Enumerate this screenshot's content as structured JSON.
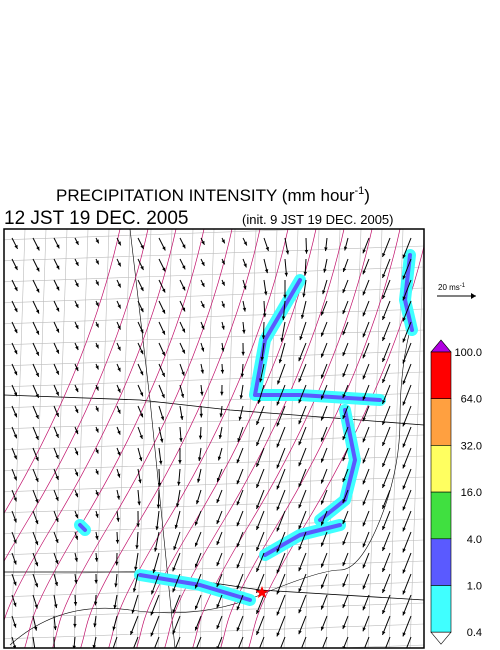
{
  "header": {
    "title": {
      "text": "PRECIPITATION INTENSITY (mm hour",
      "sup": "-1",
      "end": ")"
    },
    "valid_time": "12 JST 19 DEC. 2005",
    "init_time": "(init. 9 JST 19 DEC. 2005)"
  },
  "wind_scale": {
    "text": "20 ms",
    "sup": "-1"
  },
  "colorbar": {
    "levels": [
      {
        "label": "100.0",
        "color": "#ff0000"
      },
      {
        "label": "64.0",
        "color": "#ffa040"
      },
      {
        "label": "32.0",
        "color": "#ffff60"
      },
      {
        "label": "16.0",
        "color": "#40e040"
      },
      {
        "label": "4.0",
        "color": "#5a5aff"
      },
      {
        "label": "1.0",
        "color": "#40ffff"
      },
      {
        "label": "0.4",
        "color": "#ffffff"
      }
    ],
    "top_color": "#b000e0"
  }
}
